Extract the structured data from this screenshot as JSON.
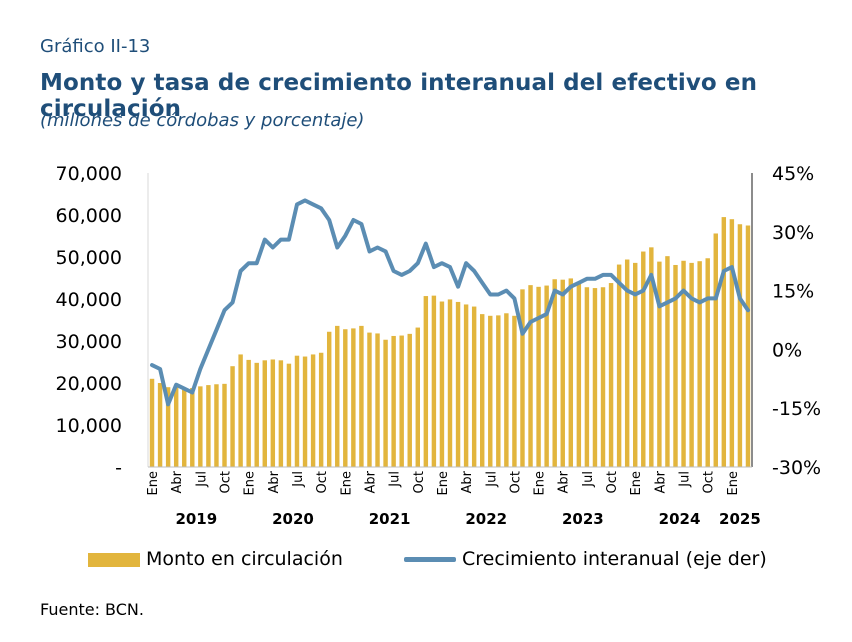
{
  "header": {
    "label": "Gráfico II-13",
    "title": "Monto y tasa de crecimiento interanual del efectivo en circulación",
    "subtitle": "(millones de córdobas y porcentaje)"
  },
  "footer": {
    "source": "Fuente: BCN."
  },
  "colors": {
    "bars": "#e2b53d",
    "line": "#5b8db3",
    "title": "#1f4e79"
  },
  "chart_data": {
    "type": "bar",
    "left_axis": {
      "ylim": [
        0,
        70000
      ],
      "ticks": [
        "-",
        "10,000",
        "20,000",
        "30,000",
        "40,000",
        "50,000",
        "60,000",
        "70,000"
      ]
    },
    "right_axis": {
      "ylim": [
        -30,
        45
      ],
      "ticks": [
        "-30%",
        "-15%",
        "0%",
        "15%",
        "30%",
        "45%"
      ]
    },
    "x_tick_labels": [
      "Ene",
      "Abr",
      "Jul",
      "Oct",
      "Ene",
      "Abr",
      "Jul",
      "Oct",
      "Ene",
      "Abr",
      "Jul",
      "Oct",
      "Ene",
      "Abr",
      "Jul",
      "Oct",
      "Ene",
      "Abr",
      "Jul",
      "Oct",
      "Ene",
      "Abr",
      "Jul",
      "Oct",
      "Ene"
    ],
    "year_labels": [
      "2019",
      "2020",
      "2021",
      "2022",
      "2023",
      "2024",
      "2025"
    ],
    "series": [
      {
        "name": "Monto en circulación",
        "type": "bar",
        "axis": "left",
        "values": [
          21000,
          20000,
          19000,
          19200,
          18700,
          18800,
          19200,
          19500,
          19700,
          19800,
          24000,
          26800,
          25500,
          24800,
          25400,
          25600,
          25400,
          24600,
          26500,
          26300,
          26800,
          27200,
          32200,
          33600,
          32800,
          33000,
          33600,
          32000,
          31800,
          30300,
          31200,
          31300,
          31700,
          33200,
          40700,
          40800,
          39400,
          39900,
          39300,
          38700,
          38200,
          36400,
          36000,
          36100,
          36600,
          36000,
          42300,
          43300,
          42900,
          43200,
          44700,
          44600,
          44900,
          44100,
          42800,
          42600,
          42800,
          43800,
          48200,
          49400,
          48600,
          51300,
          52300,
          48900,
          50200,
          48100,
          49100,
          48600,
          49000,
          49700,
          55600,
          59500,
          59000,
          57800,
          57500
        ],
        "tick_labels": [
          "2019",
          "2020",
          "2021",
          "2022",
          "2023",
          "2024",
          "2025"
        ]
      },
      {
        "name": "Crecimiento interanual (eje der)",
        "type": "line",
        "axis": "right",
        "values": [
          -4,
          -5,
          -14,
          -9,
          -10,
          -11,
          -5,
          0,
          5,
          10,
          12,
          20,
          22,
          22,
          28,
          26,
          28,
          28,
          37,
          38,
          37,
          36,
          33,
          26,
          29,
          33,
          32,
          25,
          26,
          25,
          20,
          19,
          20,
          22,
          27,
          21,
          22,
          21,
          16,
          22,
          20,
          17,
          14,
          14,
          15,
          13,
          4,
          7,
          8,
          9,
          15,
          14,
          16,
          17,
          18,
          18,
          19,
          19,
          17,
          15,
          14,
          15,
          19,
          11,
          12,
          13,
          15,
          13,
          12,
          13,
          13,
          20,
          21,
          13,
          10
        ]
      }
    ]
  }
}
